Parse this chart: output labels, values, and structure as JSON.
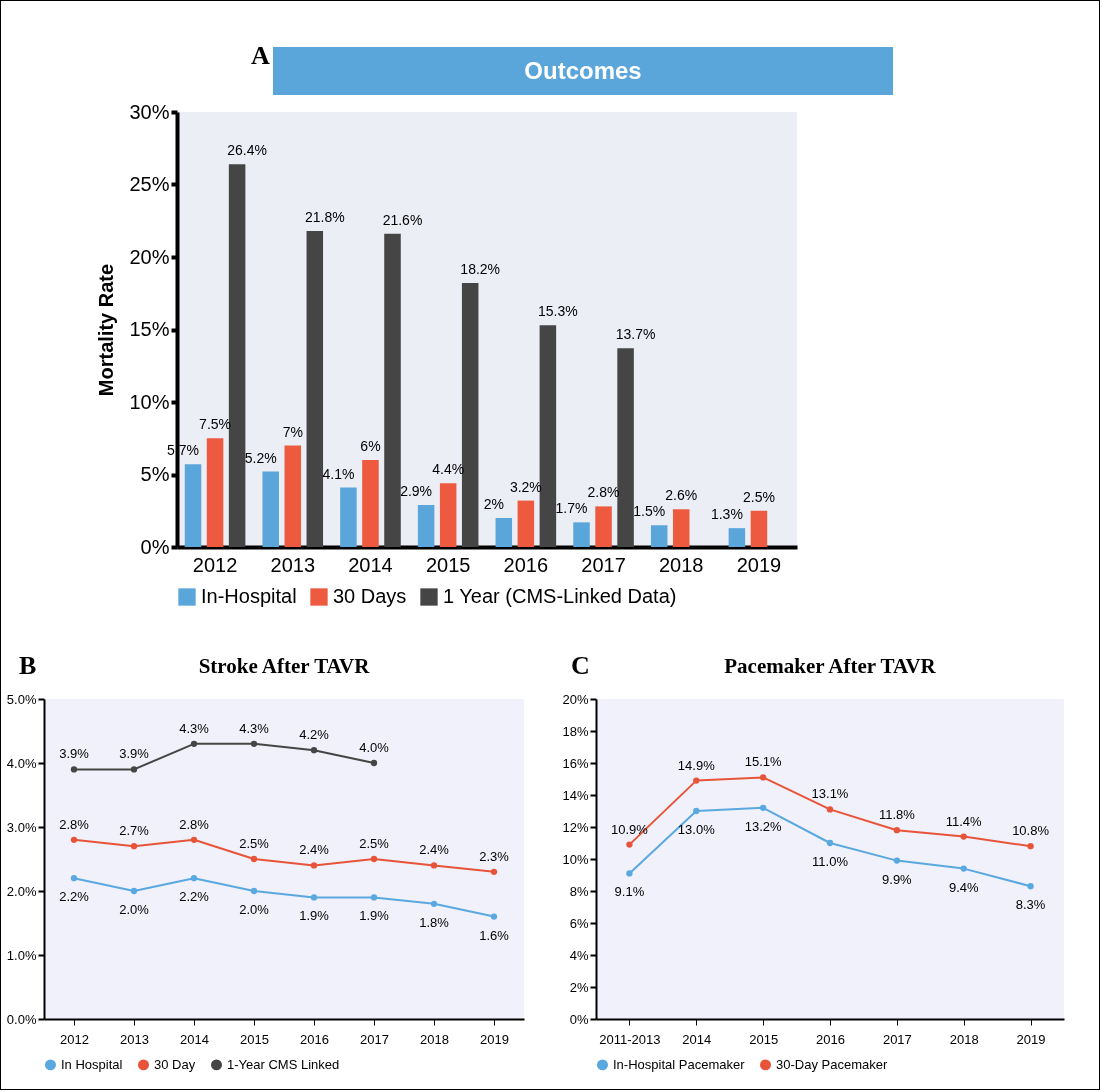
{
  "chart_data": [
    {
      "type": "bar",
      "title": "Outcomes",
      "ylabel": "Mortality Rate",
      "annotations": [
        "A"
      ],
      "categories": [
        "2012",
        "2013",
        "2014",
        "2015",
        "2016",
        "2017",
        "2018",
        "2019"
      ],
      "series": [
        {
          "name": "In-Hospital",
          "color": "#5aa5d9",
          "values": [
            5.7,
            5.2,
            4.1,
            2.9,
            2.0,
            1.7,
            1.5,
            1.3
          ],
          "value_labels": [
            "5.7%",
            "5.2%",
            "4.1%",
            "2.9%",
            "2%",
            "1.7%",
            "1.5%",
            "1.3%"
          ]
        },
        {
          "name": "30 Days",
          "color": "#ee5a40",
          "values": [
            7.5,
            7.0,
            6.0,
            4.4,
            3.2,
            2.8,
            2.6,
            2.5
          ],
          "value_labels": [
            "7.5%",
            "7%",
            "6%",
            "4.4%",
            "3.2%",
            "2.8%",
            "2.6%",
            "2.5%"
          ]
        },
        {
          "name": "1 Year (CMS-Linked Data)",
          "color": "#454545",
          "values": [
            26.4,
            21.8,
            21.6,
            18.2,
            15.3,
            13.7,
            null,
            null
          ],
          "value_labels": [
            "26.4%",
            "21.8%",
            "21.6%",
            "18.2%",
            "15.3%",
            "13.7%",
            null,
            null
          ]
        }
      ],
      "ylim": [
        0,
        30
      ],
      "yticks": [
        {
          "value": 0,
          "label": "0%"
        },
        {
          "value": 5,
          "label": "5%"
        },
        {
          "value": 10,
          "label": "10%"
        },
        {
          "value": 15,
          "label": "15%"
        },
        {
          "value": 20,
          "label": "20%"
        },
        {
          "value": 25,
          "label": "25%"
        },
        {
          "value": 30,
          "label": "30%"
        }
      ],
      "legend": "bottom"
    },
    {
      "type": "line",
      "title": "Stroke After TAVR",
      "annotations": [
        "B"
      ],
      "categories": [
        "2012",
        "2013",
        "2014",
        "2015",
        "2016",
        "2017",
        "2018",
        "2019"
      ],
      "series": [
        {
          "name": "In Hospital",
          "color": "#5aa8e0",
          "values": [
            2.2,
            2.0,
            2.2,
            2.0,
            1.9,
            1.9,
            1.8,
            1.6
          ],
          "value_labels": [
            "2.2%",
            "2.0%",
            "2.2%",
            "2.0%",
            "1.9%",
            "1.9%",
            "1.8%",
            "1.6%"
          ]
        },
        {
          "name": "30 Day",
          "color": "#e8543a",
          "values": [
            2.8,
            2.7,
            2.8,
            2.5,
            2.4,
            2.5,
            2.4,
            2.3
          ],
          "value_labels": [
            "2.8%",
            "2.7%",
            "2.8%",
            "2.5%",
            "2.4%",
            "2.5%",
            "2.4%",
            "2.3%"
          ]
        },
        {
          "name": "1-Year CMS Linked",
          "color": "#454545",
          "values": [
            3.9,
            3.9,
            4.3,
            4.3,
            4.2,
            4.0,
            null,
            null
          ],
          "value_labels": [
            "3.9%",
            "3.9%",
            "4.3%",
            "4.3%",
            "4.2%",
            "4.0%",
            null,
            null
          ]
        }
      ],
      "ylim": [
        0,
        5
      ],
      "yticks": [
        {
          "value": 0,
          "label": "0.0%"
        },
        {
          "value": 1,
          "label": "1.0%"
        },
        {
          "value": 2,
          "label": "2.0%"
        },
        {
          "value": 3,
          "label": "3.0%"
        },
        {
          "value": 4,
          "label": "4.0%"
        },
        {
          "value": 5,
          "label": "5.0%"
        }
      ],
      "legend": "bottom",
      "marker": "circle",
      "line_style": "solid"
    },
    {
      "type": "line",
      "title": "Pacemaker After TAVR",
      "annotations": [
        "C"
      ],
      "categories": [
        "2011-2013",
        "2014",
        "2015",
        "2016",
        "2017",
        "2018",
        "2019"
      ],
      "series": [
        {
          "name": "In-Hospital Pacemaker",
          "color": "#5aa8e0",
          "values": [
            9.1,
            13.0,
            13.2,
            11.0,
            9.9,
            9.4,
            8.3
          ],
          "value_labels": [
            "9.1%",
            "13.0%",
            "13.2%",
            "11.0%",
            "9.9%",
            "9.4%",
            "8.3%"
          ]
        },
        {
          "name": "30-Day Pacemaker",
          "color": "#e8543a",
          "values": [
            10.9,
            14.9,
            15.1,
            13.1,
            11.8,
            11.4,
            10.8
          ],
          "value_labels": [
            "10.9%",
            "14.9%",
            "15.1%",
            "13.1%",
            "11.8%",
            "11.4%",
            "10.8%"
          ]
        }
      ],
      "ylim": [
        0,
        20
      ],
      "yticks": [
        {
          "value": 0,
          "label": "0%"
        },
        {
          "value": 2,
          "label": "2%"
        },
        {
          "value": 4,
          "label": "4%"
        },
        {
          "value": 6,
          "label": "6%"
        },
        {
          "value": 8,
          "label": "8%"
        },
        {
          "value": 10,
          "label": "10%"
        },
        {
          "value": 12,
          "label": "12%"
        },
        {
          "value": 14,
          "label": "14%"
        },
        {
          "value": 16,
          "label": "16%"
        },
        {
          "value": 18,
          "label": "18%"
        },
        {
          "value": 20,
          "label": "20%"
        }
      ],
      "legend": "bottom",
      "marker": "circle",
      "line_style": "solid"
    }
  ]
}
